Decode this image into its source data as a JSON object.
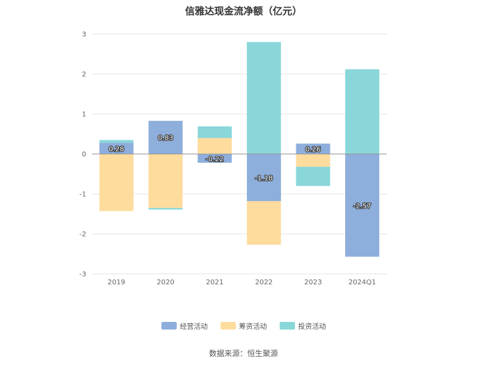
{
  "chart_data": {
    "type": "bar",
    "stacked": true,
    "title": "信雅达现金流净额（亿元）",
    "categories": [
      "2019",
      "2020",
      "2021",
      "2022",
      "2023",
      "2024Q1"
    ],
    "series": [
      {
        "name": "经营活动",
        "color": "#8eaedc",
        "values": [
          0.28,
          0.83,
          -0.22,
          -1.18,
          0.26,
          -2.57
        ],
        "labeled": true
      },
      {
        "name": "筹资活动",
        "color": "#fedc9e",
        "values": [
          -1.43,
          -1.35,
          0.4,
          -1.09,
          -0.32,
          0.0
        ]
      },
      {
        "name": "投资活动",
        "color": "#89d7d9",
        "values": [
          0.07,
          -0.04,
          0.29,
          2.8,
          -0.48,
          2.12
        ]
      }
    ],
    "ylim": [
      -3,
      3
    ],
    "yticks": [
      -3,
      -2,
      -1,
      0,
      1,
      2,
      3
    ],
    "grid": true,
    "legend_position": "bottom"
  },
  "source": "数据来源：恒生聚源"
}
